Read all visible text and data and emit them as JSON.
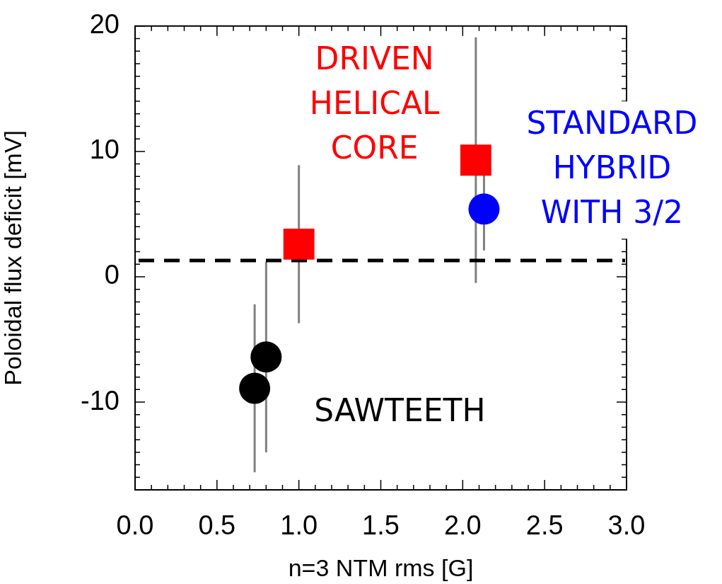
{
  "chart_data": {
    "type": "scatter",
    "xlabel": "n=3 NTM rms [G]",
    "ylabel": "Poloidal flux deficit [mV]",
    "xlim": [
      0,
      3
    ],
    "ylim": [
      -17,
      20
    ],
    "xticks": [
      {
        "value": 0,
        "label": "0.0"
      },
      {
        "value": 0.1,
        "label": null
      },
      {
        "value": 0.2,
        "label": null
      },
      {
        "value": 0.3,
        "label": null
      },
      {
        "value": 0.4,
        "label": null
      },
      {
        "value": 0.5,
        "label": "0.5"
      },
      {
        "value": 0.6,
        "label": null
      },
      {
        "value": 0.7,
        "label": null
      },
      {
        "value": 0.8,
        "label": null
      },
      {
        "value": 0.9,
        "label": null
      },
      {
        "value": 1,
        "label": "1.0"
      },
      {
        "value": 1.1,
        "label": null
      },
      {
        "value": 1.2,
        "label": null
      },
      {
        "value": 1.3,
        "label": null
      },
      {
        "value": 1.4,
        "label": null
      },
      {
        "value": 1.5,
        "label": "1.5"
      },
      {
        "value": 1.6,
        "label": null
      },
      {
        "value": 1.7,
        "label": null
      },
      {
        "value": 1.8,
        "label": null
      },
      {
        "value": 1.9,
        "label": null
      },
      {
        "value": 2,
        "label": "2.0"
      },
      {
        "value": 2.1,
        "label": null
      },
      {
        "value": 2.2,
        "label": null
      },
      {
        "value": 2.3,
        "label": null
      },
      {
        "value": 2.4,
        "label": null
      },
      {
        "value": 2.5,
        "label": "2.5"
      },
      {
        "value": 2.6,
        "label": null
      },
      {
        "value": 2.7,
        "label": null
      },
      {
        "value": 2.8,
        "label": null
      },
      {
        "value": 2.9,
        "label": null
      },
      {
        "value": 3,
        "label": "3.0"
      }
    ],
    "yticks": [
      {
        "value": -17,
        "label": null
      },
      {
        "value": -16,
        "label": null
      },
      {
        "value": -15,
        "label": null
      },
      {
        "value": -14,
        "label": null
      },
      {
        "value": -13,
        "label": null
      },
      {
        "value": -12,
        "label": null
      },
      {
        "value": -11,
        "label": null
      },
      -10,
      {
        "value": -9,
        "label": null
      },
      {
        "value": -8,
        "label": null
      },
      {
        "value": -7,
        "label": null
      },
      {
        "value": -6,
        "label": null
      },
      {
        "value": -5,
        "label": null
      },
      {
        "value": -4,
        "label": null
      },
      {
        "value": -3,
        "label": null
      },
      {
        "value": -2,
        "label": null
      },
      {
        "value": -1,
        "label": null
      },
      0,
      {
        "value": 1,
        "label": null
      },
      {
        "value": 2,
        "label": null
      },
      {
        "value": 3,
        "label": null
      },
      {
        "value": 4,
        "label": null
      },
      {
        "value": 5,
        "label": null
      },
      {
        "value": 6,
        "label": null
      },
      {
        "value": 7,
        "label": null
      },
      {
        "value": 8,
        "label": null
      },
      {
        "value": 9,
        "label": null
      },
      10,
      {
        "value": 11,
        "label": null
      },
      {
        "value": 12,
        "label": null
      },
      {
        "value": 13,
        "label": null
      },
      {
        "value": 14,
        "label": null
      },
      {
        "value": 15,
        "label": null
      },
      {
        "value": 16,
        "label": null
      },
      {
        "value": 17,
        "label": null
      },
      {
        "value": 18,
        "label": null
      },
      {
        "value": 19,
        "label": null
      },
      20
    ],
    "marker": "circle",
    "grid": false,
    "legend": false,
    "annotations": [
      {
        "text": "SAWTEETH",
        "x": 0.8,
        "y": -6.4
      },
      {
        "text": "DRIVEN HELICAL CORE",
        "x": 1.0,
        "y": 2.6
      },
      {
        "text": "STANDARD HYBRID WITH 3/2",
        "x": 2.13,
        "y": 5.4
      }
    ],
    "ref_lines": [
      {
        "axis": "y",
        "value": 1.3,
        "color": "#000000",
        "line_style": "dashed"
      }
    ],
    "series": [
      {
        "color": "#000000",
        "x": [
          0.73,
          0.8
        ],
        "values": [
          -8.9,
          -6.4
        ],
        "errors": [
          6.7,
          7.6
        ]
      },
      {
        "color": "#ff0000",
        "marker": "square",
        "x": [
          1.0,
          2.08
        ],
        "values": [
          2.6,
          9.3
        ],
        "errors": [
          6.3,
          9.8
        ]
      },
      {
        "color": "#0000ff",
        "x": [
          2.13
        ],
        "values": [
          5.4
        ],
        "errors": [
          3.3
        ]
      }
    ]
  }
}
